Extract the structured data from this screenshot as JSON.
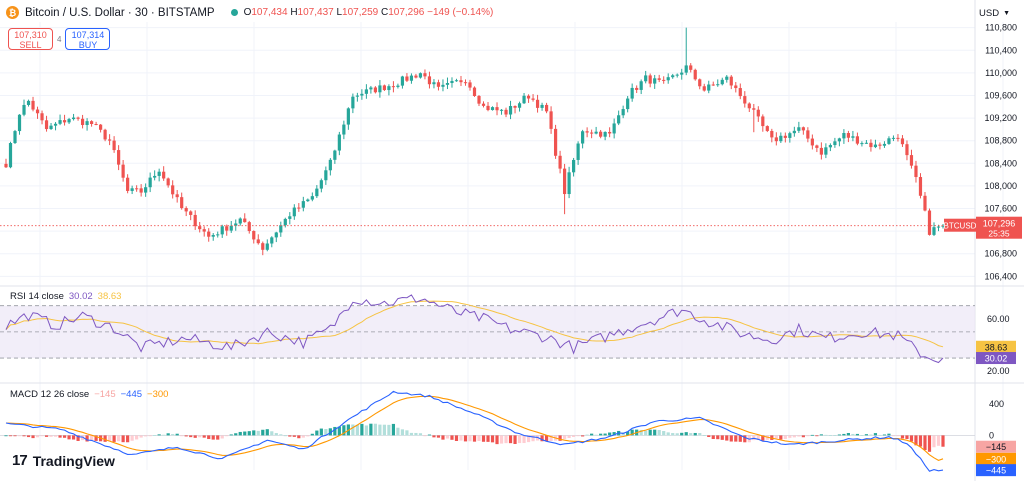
{
  "header": {
    "coin_glyph": "₿",
    "title": "Bitcoin / U.S. Dollar · 30 · BITSTAMP",
    "open_label": "O",
    "open": "107,434",
    "high_label": "H",
    "high": "107,437",
    "low_label": "L",
    "low": "107,259",
    "close_label": "C",
    "close": "107,296",
    "change": "−149 (−0.14%)"
  },
  "trade": {
    "sell_price": "107,310",
    "sell_label": "SELL",
    "spread": "4",
    "buy_price": "107,314",
    "buy_label": "BUY"
  },
  "currency": {
    "label": "USD",
    "icon": "chevron-down-icon"
  },
  "price_axis": {
    "ticks": [
      "110,800",
      "110,400",
      "110,000",
      "109,600",
      "109,200",
      "108,800",
      "108,400",
      "108,000",
      "107,600",
      "107,200",
      "106,800",
      "106,400"
    ]
  },
  "last_price": {
    "symbol": "BTCUSD",
    "price": "107,296",
    "countdown": "25:35",
    "value": 107296
  },
  "rsi": {
    "label": "RSI 14 close",
    "value": "30.02",
    "ma": "38.63",
    "ticks": [
      "60.00",
      "20.00"
    ],
    "value_num": 30.02,
    "ma_num": 38.63,
    "bands": [
      70,
      50,
      30
    ],
    "colors": {
      "rsi": "#7e57c2",
      "ma": "#f6c343",
      "band_fill": "#ede7f6"
    }
  },
  "macd": {
    "label": "MACD 12 26 close",
    "hist_value": "−145",
    "macd_value": "−445",
    "signal_value": "−300",
    "ticks": [
      "400",
      "0"
    ],
    "colors": {
      "macd": "#2962ff",
      "signal": "#ff9800",
      "hist_up": "#26a69a",
      "hist_down": "#ef5350"
    }
  },
  "brand": {
    "mark": "17",
    "name": "TradingView"
  },
  "colors": {
    "up": "#26a69a",
    "down": "#ef5350",
    "grid": "#f0f3fa"
  },
  "chart_data": {
    "type": "candlestick",
    "symbol": "BTCUSD",
    "interval": "30",
    "ylim": [
      106300,
      110900
    ],
    "close_anchors": [
      [
        0,
        108400
      ],
      [
        3,
        109300
      ],
      [
        5,
        109500
      ],
      [
        9,
        109000
      ],
      [
        14,
        109200
      ],
      [
        19,
        109100
      ],
      [
        23,
        108800
      ],
      [
        27,
        107900
      ],
      [
        30,
        107900
      ],
      [
        34,
        108300
      ],
      [
        39,
        107600
      ],
      [
        45,
        107100
      ],
      [
        52,
        107400
      ],
      [
        57,
        106900
      ],
      [
        63,
        107500
      ],
      [
        68,
        107800
      ],
      [
        72,
        108400
      ],
      [
        77,
        109600
      ],
      [
        86,
        109800
      ],
      [
        92,
        110000
      ],
      [
        96,
        109700
      ],
      [
        102,
        109900
      ],
      [
        106,
        109400
      ],
      [
        111,
        109300
      ],
      [
        116,
        109600
      ],
      [
        120,
        109300
      ],
      [
        124,
        107900
      ],
      [
        128,
        109000
      ],
      [
        134,
        108900
      ],
      [
        138,
        109600
      ],
      [
        142,
        109900
      ],
      [
        146,
        109800
      ],
      [
        151,
        110100
      ],
      [
        155,
        109700
      ],
      [
        160,
        109900
      ],
      [
        165,
        109400
      ],
      [
        170,
        108800
      ],
      [
        176,
        109000
      ],
      [
        181,
        108600
      ],
      [
        186,
        108900
      ],
      [
        193,
        108700
      ],
      [
        198,
        108900
      ],
      [
        202,
        108100
      ],
      [
        205,
        107200
      ],
      [
        208,
        107300
      ]
    ],
    "rsi_anchors": [
      [
        0,
        55
      ],
      [
        5,
        63
      ],
      [
        11,
        55
      ],
      [
        17,
        62
      ],
      [
        24,
        53
      ],
      [
        30,
        38
      ],
      [
        40,
        45
      ],
      [
        50,
        38
      ],
      [
        58,
        50
      ],
      [
        66,
        42
      ],
      [
        72,
        52
      ],
      [
        77,
        76
      ],
      [
        84,
        72
      ],
      [
        92,
        76
      ],
      [
        100,
        65
      ],
      [
        106,
        60
      ],
      [
        112,
        52
      ],
      [
        120,
        46
      ],
      [
        126,
        38
      ],
      [
        132,
        45
      ],
      [
        140,
        55
      ],
      [
        146,
        62
      ],
      [
        150,
        67
      ],
      [
        156,
        58
      ],
      [
        164,
        48
      ],
      [
        170,
        44
      ],
      [
        176,
        52
      ],
      [
        182,
        45
      ],
      [
        190,
        50
      ],
      [
        198,
        47
      ],
      [
        202,
        36
      ],
      [
        205,
        30
      ]
    ],
    "macd_anchors": [
      [
        0,
        150
      ],
      [
        12,
        80
      ],
      [
        28,
        -250
      ],
      [
        38,
        -150
      ],
      [
        48,
        -300
      ],
      [
        58,
        -60
      ],
      [
        66,
        -180
      ],
      [
        76,
        200
      ],
      [
        86,
        560
      ],
      [
        94,
        500
      ],
      [
        104,
        280
      ],
      [
        114,
        20
      ],
      [
        124,
        -120
      ],
      [
        134,
        -20
      ],
      [
        144,
        180
      ],
      [
        154,
        220
      ],
      [
        164,
        -30
      ],
      [
        174,
        -120
      ],
      [
        186,
        -60
      ],
      [
        196,
        -20
      ],
      [
        200,
        -100
      ],
      [
        205,
        -445
      ]
    ],
    "signal_last": -300,
    "macd_ylim": [
      -520,
      620
    ]
  }
}
